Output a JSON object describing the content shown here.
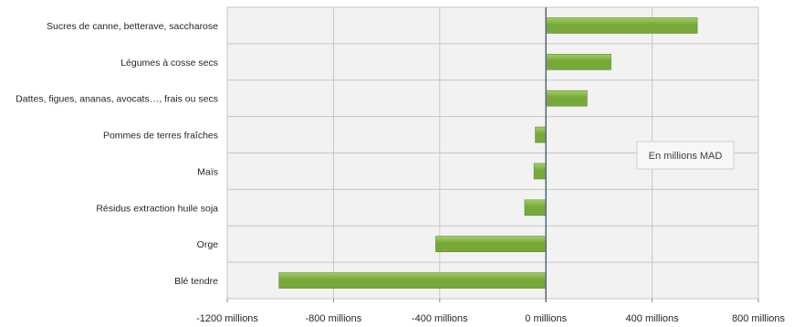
{
  "chart_data": {
    "type": "bar",
    "orientation": "horizontal",
    "categories": [
      "Sucres de canne, betterave, saccharose",
      "Légumes à cosse secs",
      "Dattes, figues, ananas, avocats…, frais ou secs",
      "Pommes de terres fraîches",
      "Maïs",
      "Résidus extraction huile soja",
      "Orge",
      "Blé tendre"
    ],
    "values": [
      570,
      245,
      155,
      -40,
      -45,
      -80,
      -415,
      -1005
    ],
    "xlim": [
      -1200,
      800
    ],
    "xticks": [
      -1200,
      -800,
      -400,
      0,
      400,
      800
    ],
    "xtick_labels": [
      "-1200 millions",
      "-800 millions",
      "-400 millions",
      "0 millions",
      "400 millions",
      "800 millions"
    ],
    "annotation": "En millions MAD",
    "grid": true,
    "legend": "none",
    "bar_color": "#77a83a",
    "bar_color_light": "#a4cf64",
    "plot_background": "#f2f2f2",
    "grid_color": "#c6c6c6",
    "axis_color": "#5f6f82",
    "title": "",
    "xlabel": "",
    "ylabel": ""
  }
}
